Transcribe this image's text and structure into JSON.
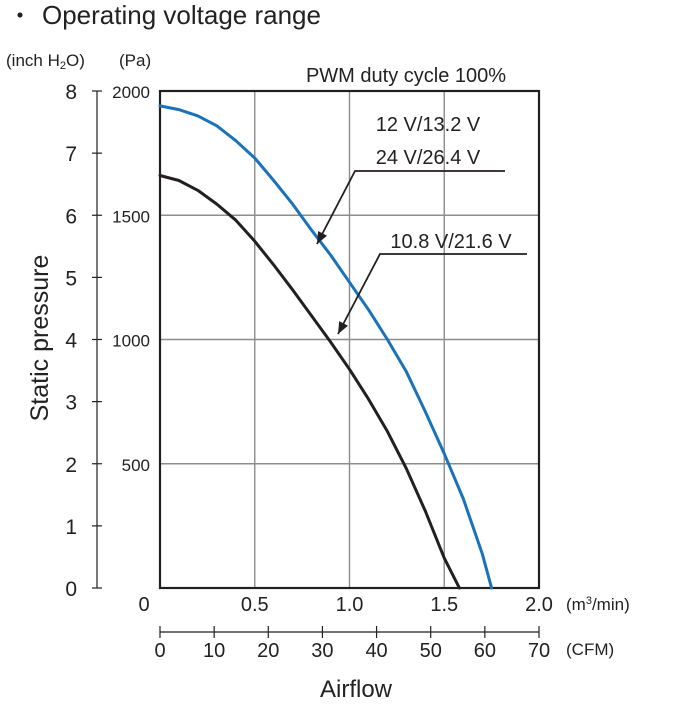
{
  "header": {
    "bullet": "・",
    "title": "Operating voltage range"
  },
  "chart_data": {
    "type": "line",
    "annotation_title": "PWM duty cycle 100%",
    "ylabel": "Static pressure",
    "xlabel": "Airflow",
    "y_primary": {
      "unit": "(Pa)",
      "range": [
        0,
        2000
      ],
      "ticks": [
        "",
        "500",
        "1000",
        "1500",
        "2000"
      ],
      "tick_values": [
        0,
        500,
        1000,
        1500,
        2000
      ]
    },
    "y_secondary": {
      "unit_prefix": "(inch H",
      "unit_sub": "2",
      "unit_suffix": "O)",
      "range": [
        0,
        8
      ],
      "ticks": [
        "0",
        "1",
        "2",
        "3",
        "4",
        "5",
        "6",
        "7",
        "8"
      ],
      "tick_values": [
        0,
        1,
        2,
        3,
        4,
        5,
        6,
        7,
        8
      ]
    },
    "x_primary": {
      "unit_prefix": "(m",
      "unit_sup": "3",
      "unit_suffix": "/min)",
      "range": [
        0,
        2.0
      ],
      "ticks": [
        "0",
        "0.5",
        "1.0",
        "1.5",
        "2.0"
      ],
      "tick_values": [
        0,
        0.5,
        1.0,
        1.5,
        2.0
      ]
    },
    "x_secondary": {
      "unit": "(CFM)",
      "range": [
        0,
        70
      ],
      "ticks": [
        "0",
        "10",
        "20",
        "30",
        "40",
        "50",
        "60",
        "70"
      ],
      "tick_values": [
        0,
        10,
        20,
        30,
        40,
        50,
        60,
        70
      ]
    },
    "grid": true,
    "series": [
      {
        "name": "12 V/13.2 V 24 V/26.4 V",
        "label_lines": [
          "12 V/13.2 V",
          "24 V/26.4 V"
        ],
        "color": "#1a73b8",
        "x": [
          0,
          0.1,
          0.2,
          0.3,
          0.4,
          0.5,
          0.6,
          0.7,
          0.8,
          0.9,
          1.0,
          1.1,
          1.2,
          1.3,
          1.4,
          1.5,
          1.6,
          1.7,
          1.75
        ],
        "y": [
          1940,
          1925,
          1900,
          1860,
          1800,
          1730,
          1640,
          1545,
          1440,
          1340,
          1230,
          1120,
          1000,
          870,
          710,
          540,
          360,
          140,
          0
        ]
      },
      {
        "name": "10.8 V/21.6 V",
        "label_lines": [
          "10.8 V/21.6 V"
        ],
        "color": "#231f20",
        "x": [
          0,
          0.1,
          0.2,
          0.3,
          0.4,
          0.5,
          0.6,
          0.7,
          0.8,
          0.9,
          1.0,
          1.1,
          1.2,
          1.3,
          1.4,
          1.5,
          1.58
        ],
        "y": [
          1660,
          1640,
          1600,
          1545,
          1480,
          1395,
          1300,
          1200,
          1095,
          990,
          880,
          760,
          630,
          480,
          310,
          120,
          0
        ]
      }
    ]
  }
}
